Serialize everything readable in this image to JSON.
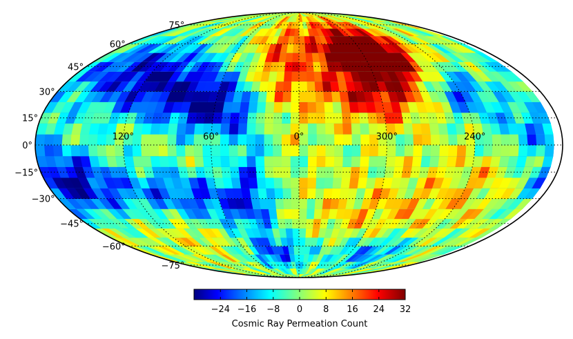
{
  "chart_data": {
    "type": "heatmap",
    "projection": "mollweide",
    "grid": true,
    "lat_ticks": [
      "75°",
      "60°",
      "45°",
      "30°",
      "15°",
      "0°",
      "−15°",
      "−30°",
      "−45°",
      "−60°",
      "−75°"
    ],
    "lon_ticks": [
      "120°",
      "60°",
      "0°",
      "300°",
      "240°"
    ],
    "colorbar": {
      "ticks": [
        "−24",
        "−16",
        "−8",
        "0",
        "8",
        "16",
        "24",
        "32"
      ],
      "range": [
        -32,
        32
      ],
      "colormap": "jet",
      "label": "Cosmic Ray Permeation Count"
    },
    "regions": [
      {
        "area": "north, lon 0°→300°, lat 15°–75°",
        "level": 24
      },
      {
        "area": "north-east peak near lon 330°, lat 60°",
        "level": 32
      },
      {
        "area": "north-west, lon 60°–150°, lat 15°–45°",
        "level": -22
      },
      {
        "area": "west equator, lon 150°–180°, lat −15° to −30°",
        "level": -28
      },
      {
        "area": "west belt, lon 60°–120°, lat −15°–−45°",
        "level": -18
      },
      {
        "area": "south, lon 0°–60°, lat −45°–−75°",
        "level": -20
      },
      {
        "area": "south, lon 300°–330°, lat −60°",
        "level": -20
      },
      {
        "area": "east, lon 240°, lat 30°",
        "level": -22
      },
      {
        "area": "center-east band, lat −15°–+15°",
        "level": 6
      }
    ]
  }
}
